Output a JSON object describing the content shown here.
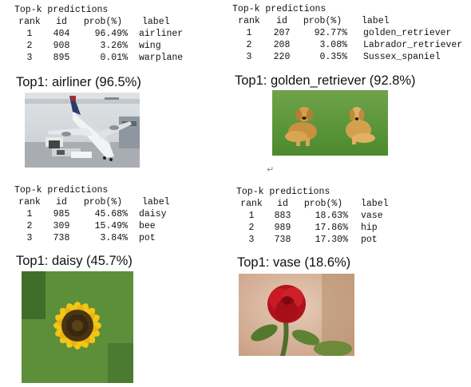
{
  "panels": [
    {
      "header": "Top-k predictions",
      "columns": [
        "rank",
        "id",
        "prob(%)",
        "label"
      ],
      "rows": [
        {
          "rank": "1",
          "id": "404",
          "prob": "96.49%",
          "label": "airliner"
        },
        {
          "rank": "2",
          "id": "908",
          "prob": "3.26%",
          "label": "wing"
        },
        {
          "rank": "3",
          "id": "895",
          "prob": "0.01%",
          "label": "warplane"
        }
      ],
      "top1": "Top1: airliner (96.5%)",
      "image": "airliner-photo"
    },
    {
      "header": "Top-k predictions",
      "columns": [
        "rank",
        "id",
        "prob(%)",
        "label"
      ],
      "rows": [
        {
          "rank": "1",
          "id": "207",
          "prob": "92.77%",
          "label": "golden_retriever"
        },
        {
          "rank": "2",
          "id": "208",
          "prob": "3.08%",
          "label": "Labrador_retriever"
        },
        {
          "rank": "3",
          "id": "220",
          "prob": "0.35%",
          "label": "Sussex_spaniel"
        }
      ],
      "top1": "Top1: golden_retriever (92.8%)",
      "image": "golden-retrievers-photo"
    },
    {
      "header": "Top-k predictions",
      "columns": [
        "rank",
        "id",
        "prob(%)",
        "label"
      ],
      "rows": [
        {
          "rank": "1",
          "id": "985",
          "prob": "45.68%",
          "label": "daisy"
        },
        {
          "rank": "2",
          "id": "309",
          "prob": "15.49%",
          "label": "bee"
        },
        {
          "rank": "3",
          "id": "738",
          "prob": "3.84%",
          "label": "pot"
        }
      ],
      "top1": "Top1: daisy (45.7%)",
      "image": "sunflower-photo"
    },
    {
      "header": "Top-k predictions",
      "columns": [
        "rank",
        "id",
        "prob(%)",
        "label"
      ],
      "rows": [
        {
          "rank": "1",
          "id": "883",
          "prob": "18.63%",
          "label": "vase"
        },
        {
          "rank": "2",
          "id": "989",
          "prob": "17.86%",
          "label": "hip"
        },
        {
          "rank": "3",
          "id": "738",
          "prob": "17.30%",
          "label": "pot"
        }
      ],
      "top1": "Top1: vase (18.6%)",
      "image": "red-rose-photo"
    }
  ],
  "cursor_glyph": "↵"
}
